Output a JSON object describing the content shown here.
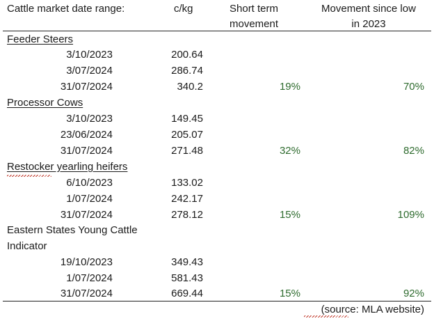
{
  "header": {
    "date_range": "Cattle market date range:",
    "unit": "c/kg",
    "short_term_line1": "Short term",
    "short_term_line2": "movement",
    "since_low_line1": "Movement since low",
    "since_low_line2": "in 2023"
  },
  "groups": [
    {
      "title": "Feeder Steers",
      "rows": [
        {
          "date": "3/10/2023",
          "price": "200.64",
          "short": "",
          "since_low": ""
        },
        {
          "date": "3/07/2024",
          "price": "286.74",
          "short": "",
          "since_low": ""
        },
        {
          "date": "31/07/2024",
          "price": "340.2",
          "short": "19%",
          "since_low": "70%"
        }
      ]
    },
    {
      "title": "Processor Cows",
      "rows": [
        {
          "date": "3/10/2023",
          "price": "149.45",
          "short": "",
          "since_low": ""
        },
        {
          "date": "23/06/2024",
          "price": "205.07",
          "short": "",
          "since_low": ""
        },
        {
          "date": "31/07/2024",
          "price": "271.48",
          "short": "32%",
          "since_low": "82%"
        }
      ]
    },
    {
      "title": "Restocker yearling heifers",
      "rows": [
        {
          "date": "6/10/2023",
          "price": "133.02",
          "short": "",
          "since_low": ""
        },
        {
          "date": "1/07/2024",
          "price": "242.17",
          "short": "",
          "since_low": ""
        },
        {
          "date": "31/07/2024",
          "price": "278.12",
          "short": "15%",
          "since_low": "109%"
        }
      ]
    },
    {
      "title_line1": "Eastern States Young Cattle",
      "title_line2": "Indicator",
      "rows": [
        {
          "date": "19/10/2023",
          "price": "349.43",
          "short": "",
          "since_low": ""
        },
        {
          "date": "1/07/2024",
          "price": "581.43",
          "short": "",
          "since_low": ""
        },
        {
          "date": "31/07/2024",
          "price": "669.44",
          "short": "15%",
          "since_low": "92%"
        }
      ]
    }
  ],
  "footer": {
    "source": "(source: MLA website)"
  },
  "colors": {
    "text": "#1a1a1a",
    "percent_green": "#2e6b2e",
    "spellcheck_red": "#c0392b"
  }
}
